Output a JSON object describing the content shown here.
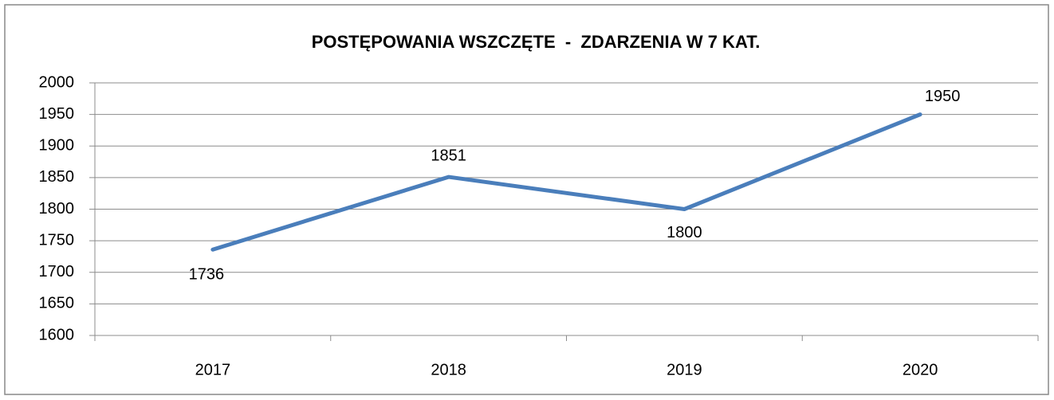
{
  "chart_data": {
    "type": "line",
    "title": "POSTĘPOWANIA WSZCZĘTE  -  ZDARZENIA W 7 KAT.",
    "categories": [
      "2017",
      "2018",
      "2019",
      "2020"
    ],
    "values": [
      1736,
      1851,
      1800,
      1950
    ],
    "color": "#4a7ebb",
    "ylim": [
      1600,
      2000
    ],
    "yticks": [
      1600,
      1650,
      1700,
      1750,
      1800,
      1850,
      1900,
      1950,
      2000
    ],
    "grid": true
  }
}
